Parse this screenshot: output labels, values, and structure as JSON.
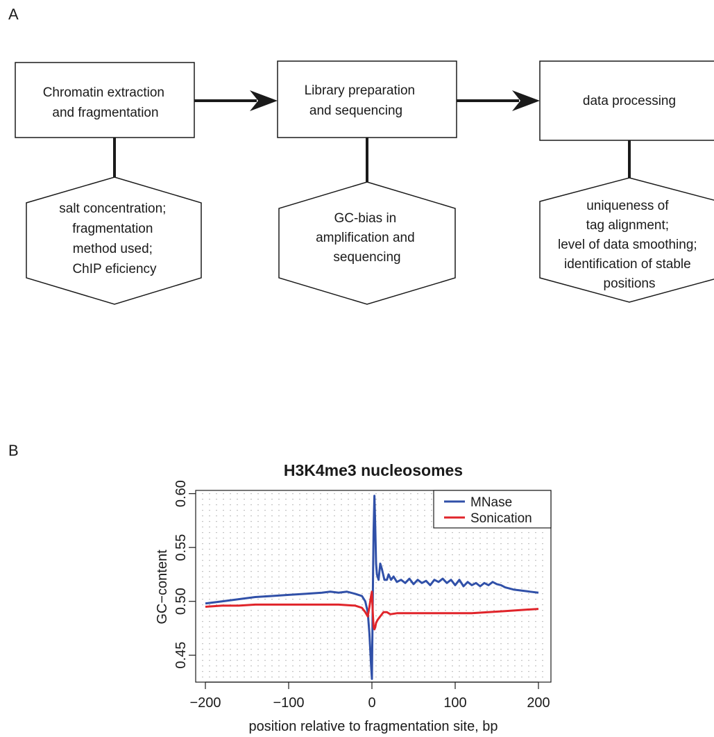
{
  "panel_a": {
    "label": "A",
    "steps": [
      {
        "lines": [
          "Chromatin extraction",
          "and fragmentation"
        ]
      },
      {
        "lines": [
          "Library preparation",
          "and sequencing"
        ]
      },
      {
        "lines": [
          "data processing"
        ]
      }
    ],
    "factors": [
      {
        "lines": [
          "salt concentration;",
          "fragmentation",
          "method used;",
          "ChIP eficiency"
        ]
      },
      {
        "lines": [
          "GC-bias in",
          "amplification and",
          "sequencing"
        ]
      },
      {
        "lines": [
          "uniqueness of",
          "tag alignment;",
          "level of data smoothing;",
          "identification of stable",
          "positions"
        ]
      }
    ]
  },
  "panel_b": {
    "label": "B"
  },
  "chart_data": {
    "type": "line",
    "title": "H3K4me3 nucleosomes",
    "xlabel": "position relative to fragmentation site, bp",
    "ylabel": "GC−content",
    "xlim": [
      -200,
      200
    ],
    "ylim": [
      0.425,
      0.603
    ],
    "xticks": [
      -200,
      -100,
      0,
      100,
      200
    ],
    "xtick_labels": [
      "−200",
      "−100",
      "0",
      "100",
      "200"
    ],
    "yticks": [
      0.45,
      0.5,
      0.55,
      0.6
    ],
    "ytick_labels": [
      "0.45",
      "0.50",
      "0.55",
      "0.60"
    ],
    "grid": true,
    "legend_position": "top-right",
    "series": [
      {
        "name": "MNase",
        "color": "#3050a8",
        "x": [
          -200,
          -180,
          -160,
          -140,
          -120,
          -100,
          -80,
          -60,
          -50,
          -40,
          -30,
          -20,
          -12,
          -8,
          -5,
          -3,
          -1,
          0,
          1,
          2,
          3,
          4,
          5,
          6,
          8,
          10,
          12,
          15,
          18,
          20,
          23,
          26,
          30,
          35,
          40,
          45,
          50,
          55,
          60,
          65,
          70,
          75,
          80,
          85,
          90,
          95,
          100,
          105,
          110,
          115,
          120,
          125,
          130,
          135,
          140,
          145,
          150,
          155,
          160,
          170,
          180,
          190,
          200
        ],
        "y": [
          0.498,
          0.5,
          0.502,
          0.504,
          0.505,
          0.506,
          0.507,
          0.508,
          0.509,
          0.508,
          0.509,
          0.507,
          0.505,
          0.5,
          0.49,
          0.47,
          0.44,
          0.428,
          0.5,
          0.565,
          0.598,
          0.57,
          0.535,
          0.525,
          0.52,
          0.535,
          0.53,
          0.52,
          0.52,
          0.525,
          0.52,
          0.523,
          0.518,
          0.52,
          0.517,
          0.521,
          0.516,
          0.52,
          0.517,
          0.519,
          0.515,
          0.52,
          0.518,
          0.521,
          0.517,
          0.52,
          0.515,
          0.52,
          0.514,
          0.518,
          0.515,
          0.517,
          0.514,
          0.517,
          0.515,
          0.518,
          0.516,
          0.515,
          0.513,
          0.511,
          0.51,
          0.509,
          0.508
        ]
      },
      {
        "name": "Sonication",
        "color": "#e0242a",
        "x": [
          -200,
          -180,
          -160,
          -140,
          -120,
          -100,
          -80,
          -60,
          -40,
          -20,
          -12,
          -8,
          -5,
          -3,
          -1,
          0,
          1,
          2,
          3,
          4,
          5,
          7,
          10,
          14,
          18,
          22,
          30,
          40,
          60,
          80,
          100,
          120,
          140,
          160,
          180,
          200
        ],
        "y": [
          0.495,
          0.496,
          0.496,
          0.497,
          0.497,
          0.497,
          0.497,
          0.497,
          0.497,
          0.496,
          0.494,
          0.49,
          0.486,
          0.495,
          0.505,
          0.509,
          0.49,
          0.476,
          0.474,
          0.476,
          0.48,
          0.483,
          0.486,
          0.49,
          0.49,
          0.488,
          0.489,
          0.489,
          0.489,
          0.489,
          0.489,
          0.489,
          0.49,
          0.491,
          0.492,
          0.493
        ]
      }
    ]
  }
}
